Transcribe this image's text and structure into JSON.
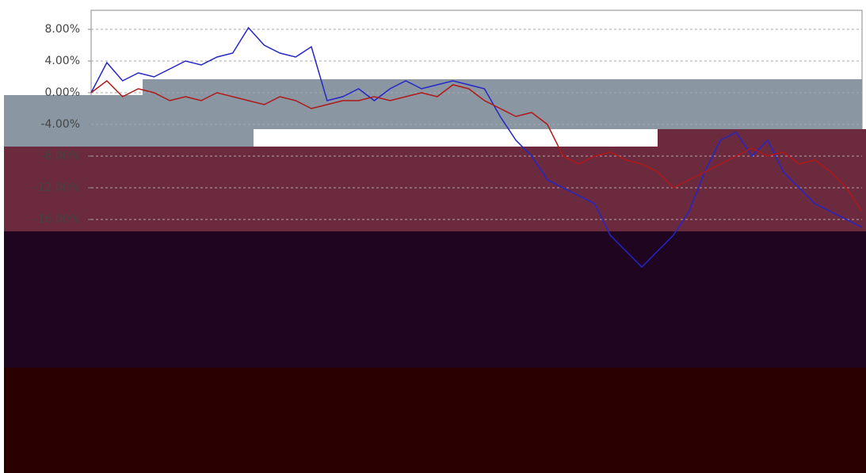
{
  "chart_data": {
    "type": "line",
    "categories": [
      null,
      null,
      null,
      null,
      null,
      null,
      null,
      null,
      null,
      null,
      null,
      null,
      null,
      null,
      null,
      null,
      null,
      null,
      null,
      null,
      null,
      null,
      null,
      null,
      null,
      null,
      null,
      null,
      null,
      null,
      null,
      null,
      null,
      null,
      null,
      null,
      null,
      null,
      null,
      null,
      null,
      null,
      null,
      null,
      null,
      null,
      null,
      null,
      null,
      null
    ],
    "series": [
      {
        "color": "#2525c8",
        "values": [
          0,
          3.8,
          1.5,
          2.5,
          2,
          3,
          4,
          3.5,
          4.5,
          5,
          8.2,
          6,
          5,
          4.5,
          5.8,
          -1,
          -0.5,
          0.5,
          -1,
          0.5,
          1.5,
          0.5,
          1,
          1.5,
          1,
          0.5,
          -3,
          -6,
          -8,
          -11,
          -12,
          -13,
          -14,
          -18,
          -20,
          -22,
          -20,
          -18,
          -15,
          -10,
          -6,
          -5,
          -8,
          -6,
          -10,
          -12,
          -14,
          -15,
          -16,
          -17
        ]
      },
      {
        "color": "#b01818",
        "values": [
          0,
          1.5,
          -0.5,
          0.5,
          0,
          -1,
          -0.5,
          -1,
          0,
          -0.5,
          -1,
          -1.5,
          -0.5,
          -1,
          -2,
          -1.5,
          -1,
          -1,
          -0.5,
          -1,
          -0.5,
          0,
          -0.5,
          1,
          0.5,
          -1,
          -2,
          -3,
          -2.5,
          -4,
          -8,
          -9,
          -8,
          -7.5,
          -8.5,
          -9,
          -10,
          -12,
          -11,
          -10,
          -9,
          -8,
          -7,
          -8,
          -7.5,
          -9,
          -8.5,
          -10,
          -12,
          -15
        ]
      }
    ],
    "ylim": [
      -48,
      10.4
    ],
    "yticks": [
      {
        "value": 8,
        "label": "8.00%"
      },
      {
        "value": 4,
        "label": "4.00%"
      },
      {
        "value": 0,
        "label": "0.00%"
      },
      {
        "value": -4,
        "label": "-4.00%"
      },
      {
        "value": -8,
        "label": "-8.00%"
      },
      {
        "value": -12,
        "label": "-12.00%"
      },
      {
        "value": -16,
        "label": "-16.00%"
      }
    ],
    "grid": true
  }
}
